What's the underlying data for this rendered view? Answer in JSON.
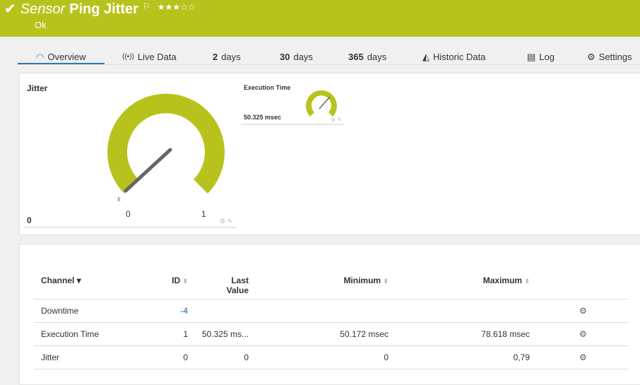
{
  "header": {
    "prefix": "Sensor",
    "name": "Ping Jitter",
    "stars": "★★★☆☆",
    "rating": 3,
    "status": "Ok",
    "color": "#b7c31c"
  },
  "tabs": [
    {
      "label": "Overview",
      "icon": "gauge-icon"
    },
    {
      "label": "Live Data",
      "icon": "broadcast-icon"
    },
    {
      "num": "2",
      "label": "days"
    },
    {
      "num": "30",
      "label": "days"
    },
    {
      "num": "365",
      "label": "days"
    },
    {
      "label": "Historic Data",
      "icon": "area-chart-icon"
    },
    {
      "label": "Log",
      "icon": "log-icon"
    },
    {
      "label": "Settings",
      "icon": "gear-icon"
    }
  ],
  "gauges": {
    "jitter": {
      "title": "Jitter",
      "value": "0",
      "min": "0",
      "max": "1",
      "avg_mark": "x̄"
    },
    "exec": {
      "title": "Execution Time",
      "value": "50.325 msec"
    }
  },
  "table": {
    "headers": {
      "channel": "Channel",
      "id": "ID",
      "last": "Last Value",
      "min": "Minimum",
      "max": "Maximum"
    },
    "rows": [
      {
        "channel": "Downtime",
        "id": "-4",
        "last": "",
        "min": "",
        "max": ""
      },
      {
        "channel": "Execution Time",
        "id": "1",
        "last": "50.325 ms...",
        "min": "50.172 msec",
        "max": "78.618 msec"
      },
      {
        "channel": "Jitter",
        "id": "0",
        "last": "0",
        "min": "0",
        "max": "0,79"
      }
    ]
  }
}
